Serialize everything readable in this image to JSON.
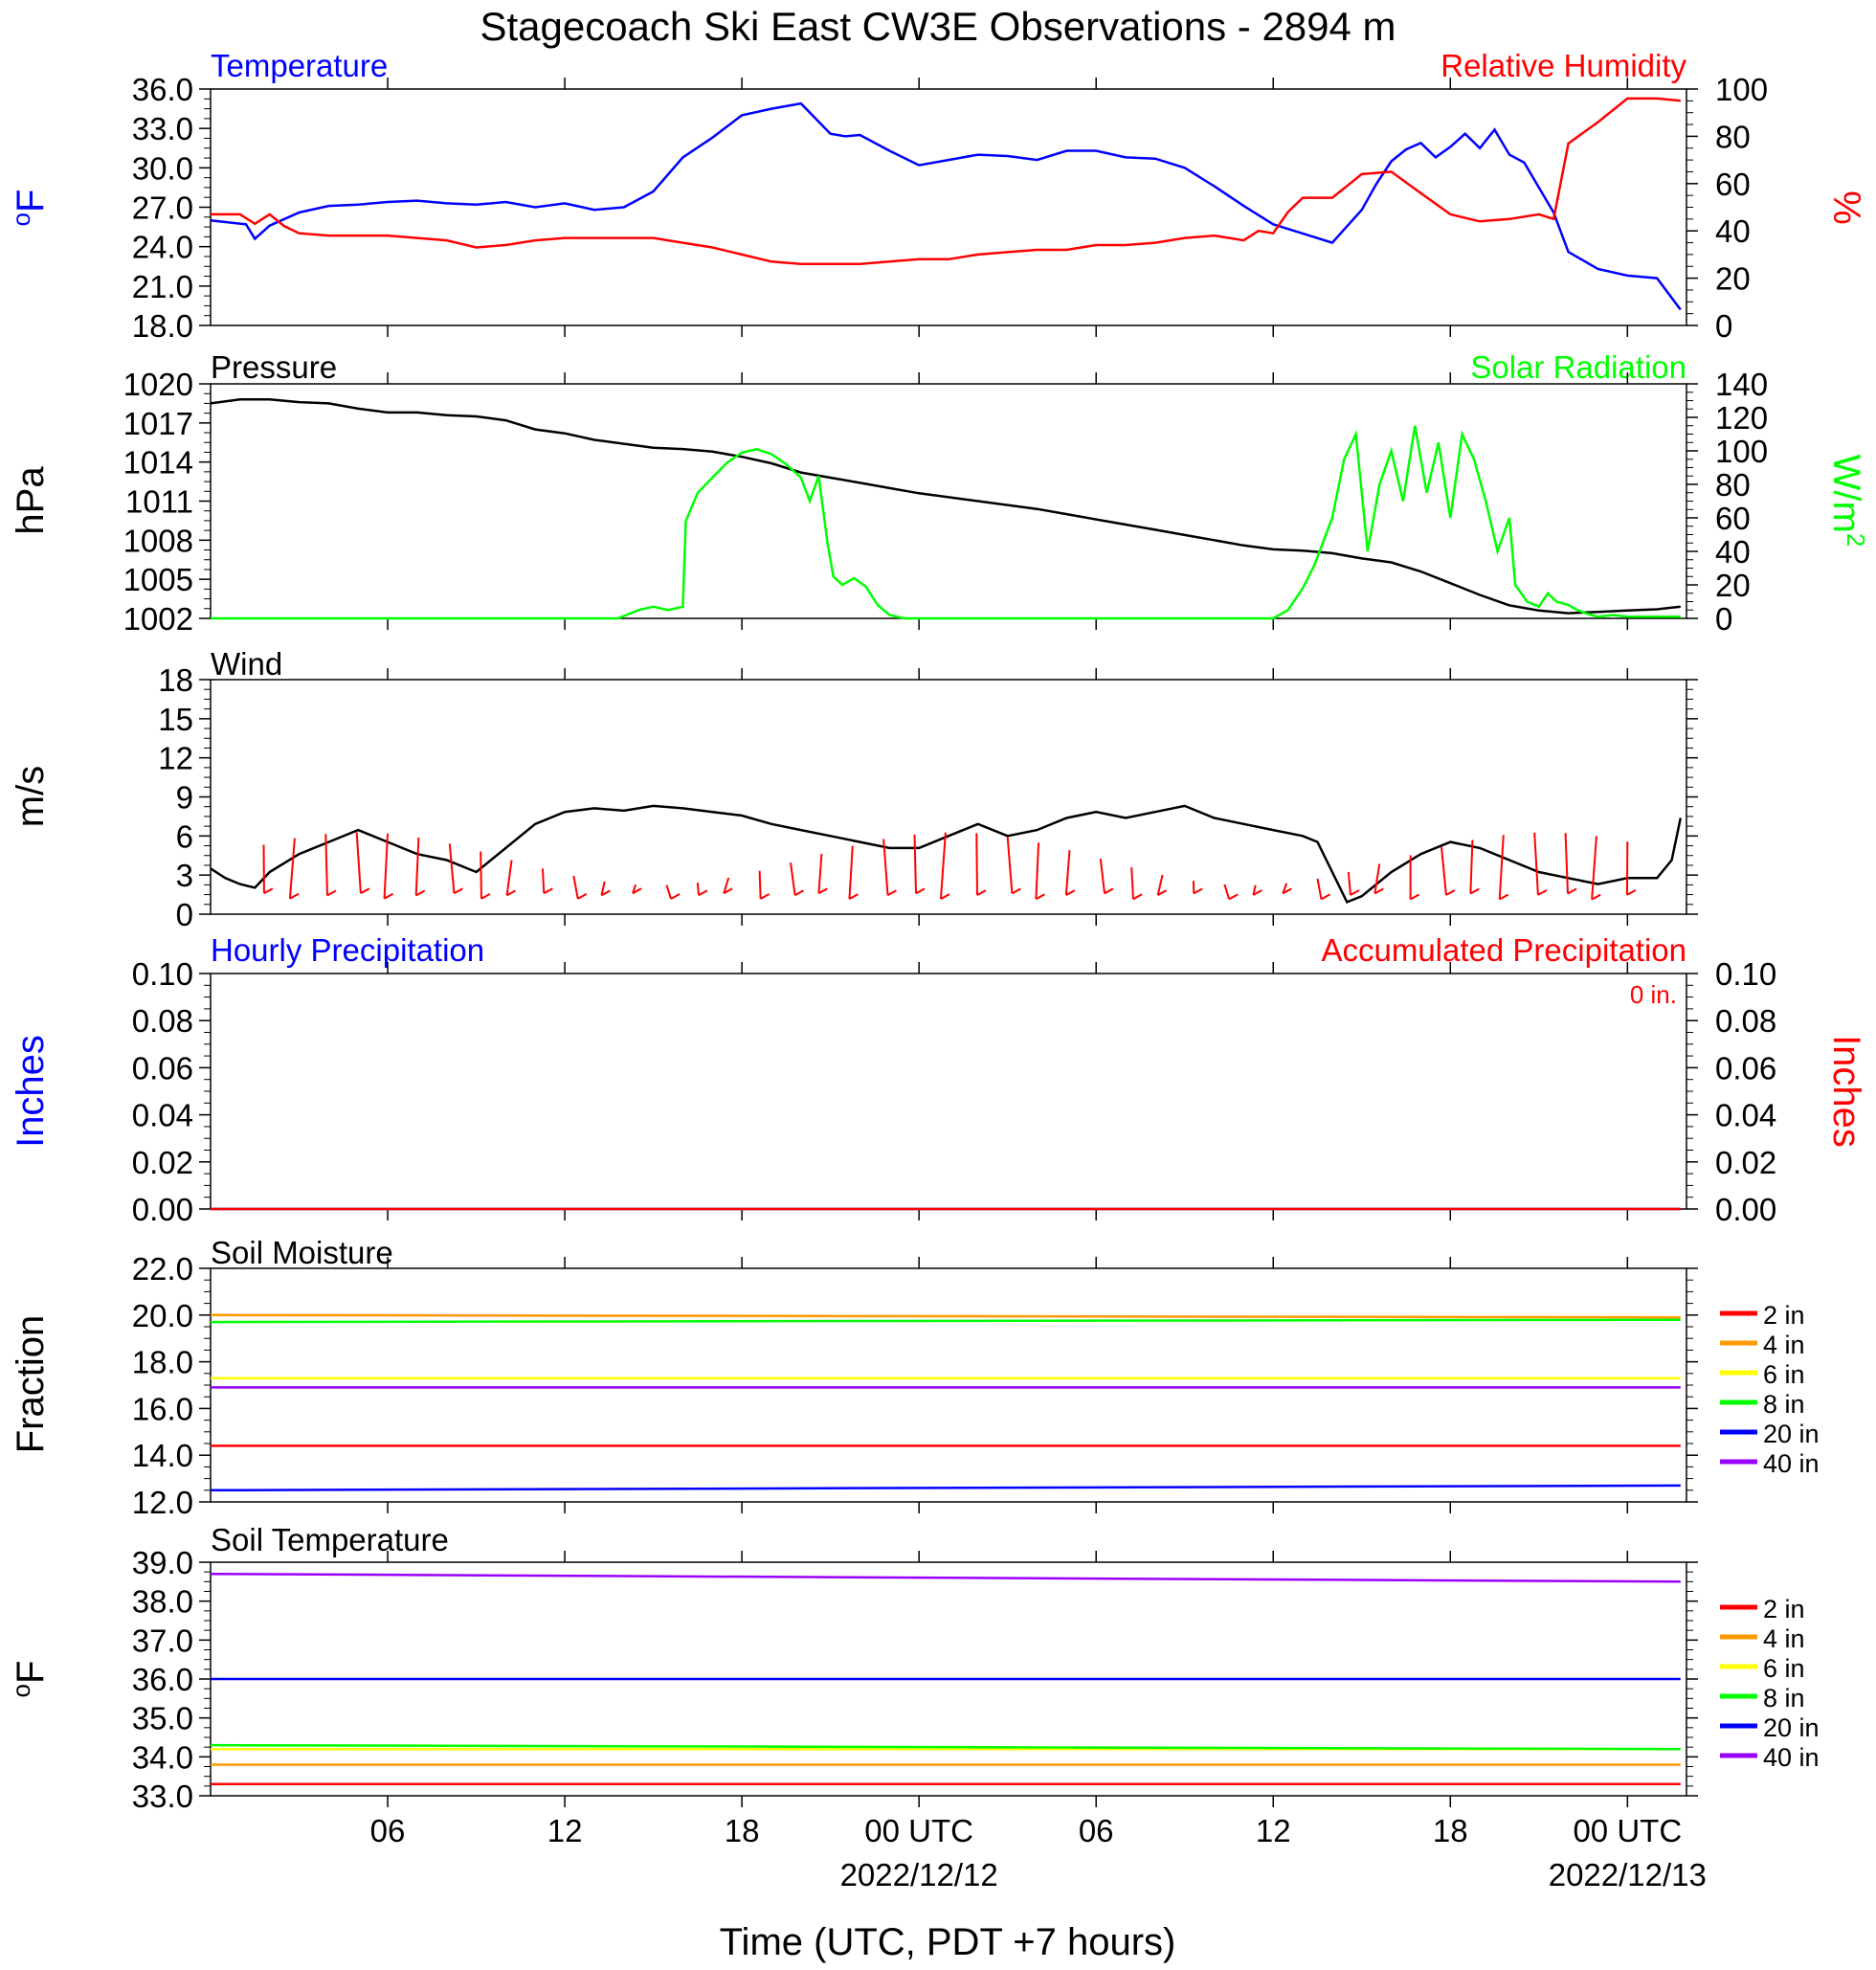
{
  "title": "Stagecoach Ski East CW3E Observations - 2894 m",
  "xlabel": "Time (UTC, PDT +7 hours)",
  "colors": {
    "temperature": "#0000ff",
    "humidity": "#ff0000",
    "pressure": "#000000",
    "solar": "#00ff00",
    "wind": "#000000",
    "barb": "#ff0000",
    "d2": "#ff0000",
    "d4": "#ff9900",
    "d6": "#ffff00",
    "d8": "#00ff00",
    "d20": "#0000ff",
    "d40": "#9900ff"
  },
  "x_ticks": [
    {
      "h": 6,
      "label": "06"
    },
    {
      "h": 12,
      "label": "12"
    },
    {
      "h": 18,
      "label": "18"
    },
    {
      "h": 24,
      "label": "00 UTC",
      "date": "2022/12/12"
    },
    {
      "h": 30,
      "label": "06"
    },
    {
      "h": 36,
      "label": "12"
    },
    {
      "h": 42,
      "label": "18"
    },
    {
      "h": 48,
      "label": "00 UTC",
      "date": "2022/12/13"
    }
  ],
  "panels": {
    "temp": {
      "left_title": "Temperature",
      "right_title": "Relative Humidity",
      "y_label": "oF",
      "y2_label": "%",
      "y_ticks": [
        "36.0",
        "33.0",
        "30.0",
        "27.0",
        "24.0",
        "21.0",
        "18.0"
      ],
      "y2_ticks": [
        "100",
        "80",
        "60",
        "40",
        "20",
        "0"
      ]
    },
    "press": {
      "left_title": "Pressure",
      "right_title": "Solar Radiation",
      "y_label": "hPa",
      "y2_label": "W/m2",
      "y_ticks": [
        "1020",
        "1017",
        "1014",
        "1011",
        "1008",
        "1005",
        "1002"
      ],
      "y2_ticks": [
        "140",
        "120",
        "100",
        "80",
        "60",
        "40",
        "20",
        "0"
      ]
    },
    "wind": {
      "left_title": "Wind",
      "y_label": "m/s",
      "y_ticks": [
        "18",
        "15",
        "12",
        "9",
        "6",
        "3",
        "0"
      ]
    },
    "precip": {
      "left_title": "Hourly Precipitation",
      "right_title": "Accumulated Precipitation",
      "total": "0 in.",
      "y_label": "Inches",
      "y2_label": "Inches",
      "y_ticks": [
        "0.10",
        "0.08",
        "0.06",
        "0.04",
        "0.02",
        "0.00"
      ],
      "y2_ticks": [
        "0.10",
        "0.08",
        "0.06",
        "0.04",
        "0.02",
        "0.00"
      ]
    },
    "soilm": {
      "left_title": "Soil Moisture",
      "y_label": "Fraction",
      "y_ticks": [
        "22.0",
        "20.0",
        "18.0",
        "16.0",
        "14.0",
        "12.0"
      ]
    },
    "soilt": {
      "left_title": "Soil Temperature",
      "y_label": "oF",
      "y_ticks": [
        "39.0",
        "38.0",
        "37.0",
        "36.0",
        "35.0",
        "34.0",
        "33.0"
      ]
    }
  },
  "legend": [
    "2 in",
    "4 in",
    "6 in",
    "8 in",
    "20 in",
    "40 in"
  ],
  "chart_data": [
    {
      "type": "line",
      "title": "Temperature / Relative Humidity",
      "xlim": [
        0,
        50
      ],
      "ylim": [
        18,
        36
      ],
      "y2lim": [
        0,
        100
      ],
      "series": [
        {
          "name": "Temperature",
          "axis": "left",
          "unit": "oF",
          "x": [
            0,
            1.2,
            1.5,
            2,
            3,
            4,
            5,
            6,
            7,
            8,
            9,
            10,
            11,
            12,
            13,
            14,
            15,
            16,
            17,
            18,
            19,
            20,
            21,
            21.5,
            22,
            23,
            24,
            25,
            26,
            27,
            28,
            29,
            30,
            31,
            32,
            33,
            34,
            35,
            36,
            37,
            38,
            39,
            39.5,
            40,
            40.5,
            41,
            41.5,
            42,
            42.5,
            43,
            43.5,
            44,
            44.5,
            45,
            45.5,
            46,
            47,
            48,
            49,
            49.8
          ],
          "y": [
            26,
            25.7,
            24.6,
            25.6,
            26.6,
            27.1,
            27.2,
            27.4,
            27.5,
            27.3,
            27.2,
            27.4,
            27.0,
            27.3,
            26.8,
            27.0,
            28.2,
            30.8,
            32.3,
            34.0,
            34.5,
            34.9,
            32.6,
            32.4,
            32.5,
            31.3,
            30.2,
            30.6,
            31.0,
            30.9,
            30.6,
            31.3,
            31.3,
            30.8,
            30.7,
            30.0,
            28.6,
            27.1,
            25.7,
            25.0,
            24.3,
            26.8,
            28.8,
            30.5,
            31.4,
            31.9,
            30.8,
            31.6,
            32.6,
            31.5,
            32.9,
            31.0,
            30.4,
            28.5,
            26.6,
            23.6,
            22.3,
            21.8,
            21.6,
            19.2
          ]
        },
        {
          "name": "Relative Humidity",
          "axis": "right",
          "unit": "%",
          "x": [
            0,
            1,
            1.5,
            2,
            2.5,
            3,
            4,
            5,
            6,
            7,
            8,
            9,
            10,
            11,
            12,
            13,
            14,
            15,
            16,
            17,
            18,
            19,
            20,
            21,
            22,
            23,
            24,
            25,
            26,
            27,
            28,
            29,
            30,
            31,
            32,
            33,
            34,
            35,
            35.5,
            36,
            36.5,
            37,
            38,
            38.5,
            39,
            40,
            41,
            42,
            43,
            44,
            45,
            45.5,
            46,
            47,
            48,
            49,
            49.8
          ],
          "y": [
            47,
            47,
            43,
            47,
            42,
            39,
            38,
            38,
            38,
            37,
            36,
            33,
            34,
            36,
            37,
            37,
            37,
            37,
            35,
            33,
            30,
            27,
            26,
            26,
            26,
            27,
            28,
            28,
            30,
            31,
            32,
            32,
            34,
            34,
            35,
            37,
            38,
            36,
            40,
            39,
            48,
            54,
            54,
            59,
            64,
            65,
            56,
            47,
            44,
            45,
            47,
            45,
            77,
            86,
            96,
            96,
            95
          ]
        }
      ]
    },
    {
      "type": "line",
      "title": "Pressure / Solar Radiation",
      "xlim": [
        0,
        50
      ],
      "ylim": [
        1002,
        1020
      ],
      "y2lim": [
        0,
        140
      ],
      "series": [
        {
          "name": "Pressure",
          "axis": "left",
          "unit": "hPa",
          "x": [
            0,
            1,
            2,
            3,
            4,
            5,
            6,
            7,
            8,
            9,
            10,
            11,
            12,
            13,
            14,
            15,
            16,
            17,
            18,
            19,
            20,
            21,
            22,
            23,
            24,
            25,
            26,
            27,
            28,
            29,
            30,
            31,
            32,
            33,
            34,
            35,
            36,
            37,
            38,
            39,
            40,
            41,
            42,
            43,
            44,
            45,
            46,
            47,
            48,
            49,
            49.8
          ],
          "y": [
            1018.5,
            1018.8,
            1018.8,
            1018.6,
            1018.5,
            1018.1,
            1017.8,
            1017.8,
            1017.6,
            1017.5,
            1017.2,
            1016.5,
            1016.2,
            1015.7,
            1015.4,
            1015.1,
            1015.0,
            1014.8,
            1014.4,
            1013.9,
            1013.2,
            1012.8,
            1012.4,
            1012.0,
            1011.6,
            1011.3,
            1011.0,
            1010.7,
            1010.4,
            1010.0,
            1009.6,
            1009.2,
            1008.8,
            1008.4,
            1008.0,
            1007.6,
            1007.3,
            1007.2,
            1007.0,
            1006.6,
            1006.3,
            1005.6,
            1004.7,
            1003.8,
            1003.0,
            1002.6,
            1002.4,
            1002.5,
            1002.6,
            1002.7,
            1002.9
          ]
        },
        {
          "name": "Solar Radiation",
          "axis": "right",
          "unit": "W/m2",
          "x": [
            0,
            13.8,
            14.5,
            15,
            15.5,
            16,
            16.1,
            16.5,
            17,
            17.5,
            18,
            18.5,
            19,
            19.5,
            20,
            20.3,
            20.6,
            20.9,
            21.1,
            21.4,
            21.8,
            22.2,
            22.6,
            23,
            23.5,
            24,
            30,
            35.5,
            36,
            36.5,
            37,
            37.4,
            38,
            38.4,
            38.8,
            39.2,
            39.6,
            40,
            40.4,
            40.8,
            41.2,
            41.6,
            42,
            42.4,
            42.8,
            43.2,
            43.6,
            44,
            44.2,
            44.6,
            45,
            45.3,
            45.6,
            46,
            46.3,
            46.6,
            47,
            47.5,
            48,
            49,
            49.8
          ],
          "y": [
            0,
            0,
            5,
            7,
            5,
            7,
            58,
            75,
            84,
            93,
            99,
            101,
            98,
            92,
            84,
            70,
            85,
            45,
            25,
            20,
            24,
            19,
            8,
            2,
            0,
            0,
            0,
            0,
            0,
            5,
            18,
            32,
            60,
            95,
            110,
            40,
            80,
            100,
            70,
            115,
            75,
            105,
            60,
            110,
            95,
            70,
            40,
            60,
            20,
            10,
            7,
            15,
            10,
            8,
            5,
            3,
            1,
            2,
            1,
            1,
            1
          ]
        }
      ]
    },
    {
      "type": "line",
      "title": "Wind",
      "xlim": [
        0,
        50
      ],
      "ylim": [
        0,
        19.5
      ],
      "series": [
        {
          "name": "Wind",
          "unit": "m/s",
          "x": [
            0,
            0.5,
            1,
            1.5,
            2,
            3,
            4,
            5,
            6,
            7,
            8,
            9,
            10,
            11,
            12,
            13,
            14,
            15,
            16,
            17,
            18,
            19,
            20,
            21,
            22,
            23,
            24,
            25,
            26,
            27,
            28,
            29,
            30,
            31,
            32,
            33,
            34,
            35,
            36,
            37,
            37.5,
            38,
            38.5,
            39,
            40,
            41,
            42,
            43,
            44,
            45,
            46,
            47,
            48,
            49,
            49.5,
            49.8
          ],
          "y": [
            3.8,
            3.0,
            2.5,
            2.2,
            3.5,
            5.0,
            6.0,
            7.0,
            6.0,
            5.0,
            4.5,
            3.5,
            5.5,
            7.5,
            8.5,
            8.8,
            8.6,
            9.0,
            8.8,
            8.5,
            8.2,
            7.5,
            7.0,
            6.5,
            6.0,
            5.5,
            5.5,
            6.5,
            7.5,
            6.5,
            7.0,
            8.0,
            8.5,
            8.0,
            8.5,
            9.0,
            8.0,
            7.5,
            7.0,
            6.5,
            6.0,
            3.5,
            1.0,
            1.5,
            3.5,
            5.0,
            6.0,
            5.5,
            4.5,
            3.5,
            3.0,
            2.5,
            3.0,
            3.0,
            4.5,
            8.0
          ]
        }
      ]
    },
    {
      "type": "line",
      "title": "Hourly Precipitation / Accumulated Precipitation",
      "xlim": [
        0,
        50
      ],
      "ylim": [
        0,
        0.1
      ],
      "y2lim": [
        0,
        0.1
      ],
      "series": [
        {
          "name": "Hourly Precipitation",
          "axis": "left",
          "unit": "in",
          "x": [
            0,
            49.8
          ],
          "y": [
            0,
            0
          ]
        },
        {
          "name": "Accumulated Precipitation",
          "axis": "right",
          "unit": "in",
          "x": [
            0,
            49.8
          ],
          "y": [
            0,
            0
          ]
        }
      ]
    },
    {
      "type": "line",
      "title": "Soil Moisture",
      "xlim": [
        0,
        50
      ],
      "ylim": [
        12,
        22
      ],
      "series": [
        {
          "name": "2 in",
          "x": [
            0,
            49.8
          ],
          "y": [
            14.4,
            14.4
          ]
        },
        {
          "name": "4 in",
          "x": [
            0,
            49.8
          ],
          "y": [
            20.0,
            19.9
          ]
        },
        {
          "name": "6 in",
          "x": [
            0,
            49.8
          ],
          "y": [
            17.3,
            17.3
          ]
        },
        {
          "name": "8 in",
          "x": [
            0,
            49.8
          ],
          "y": [
            19.7,
            19.8
          ]
        },
        {
          "name": "20 in",
          "x": [
            0,
            49.8
          ],
          "y": [
            12.5,
            12.7
          ]
        },
        {
          "name": "40 in",
          "x": [
            0,
            49.8
          ],
          "y": [
            16.9,
            16.9
          ]
        }
      ]
    },
    {
      "type": "line",
      "title": "Soil Temperature",
      "xlim": [
        0,
        50
      ],
      "ylim": [
        33,
        39
      ],
      "series": [
        {
          "name": "2 in",
          "x": [
            0,
            49.8
          ],
          "y": [
            33.3,
            33.3
          ]
        },
        {
          "name": "4 in",
          "x": [
            0,
            49.8
          ],
          "y": [
            33.8,
            33.8
          ]
        },
        {
          "name": "6 in",
          "x": [
            0,
            49.8
          ],
          "y": [
            34.2,
            34.2
          ]
        },
        {
          "name": "8 in",
          "x": [
            0,
            49.8
          ],
          "y": [
            34.3,
            34.2
          ]
        },
        {
          "name": "20 in",
          "x": [
            0,
            49.8
          ],
          "y": [
            36.0,
            36.0
          ]
        },
        {
          "name": "40 in",
          "x": [
            0,
            49.8
          ],
          "y": [
            38.7,
            38.5
          ]
        }
      ]
    }
  ]
}
